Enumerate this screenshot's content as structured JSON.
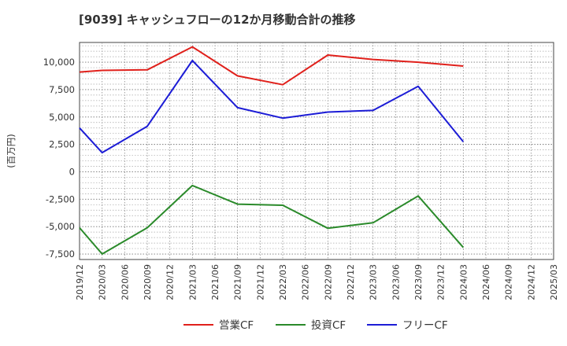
{
  "chart_data": {
    "type": "line",
    "title": "[9039]  キャッシュフローの12か月移動合計の推移",
    "ylabel": "(百万円)",
    "xlabel": "",
    "ylim": [
      -8000,
      11800
    ],
    "y_ticks": [
      10000,
      7500,
      5000,
      2500,
      0,
      -2500,
      -5000,
      -7500
    ],
    "y_tick_labels": [
      "10,000",
      "7,500",
      "5,000",
      "2,500",
      "0",
      "-2,500",
      "-5,000",
      "-7,500"
    ],
    "categories": [
      "2019/12",
      "2020/03",
      "2020/06",
      "2020/09",
      "2020/12",
      "2021/03",
      "2021/06",
      "2021/09",
      "2021/12",
      "2022/03",
      "2022/06",
      "2022/09",
      "2022/12",
      "2023/03",
      "2023/06",
      "2023/09",
      "2023/12",
      "2024/03",
      "2024/06",
      "2024/09",
      "2024/12",
      "2025/03"
    ],
    "series": [
      {
        "name": "営業CF",
        "color": "#e0201b",
        "values": [
          9100,
          9250,
          null,
          9300,
          null,
          11400,
          null,
          8750,
          null,
          7950,
          null,
          10650,
          null,
          10250,
          null,
          10000,
          null,
          9650,
          null,
          null,
          null,
          null
        ]
      },
      {
        "name": "投資CF",
        "color": "#2a8a2a",
        "values": [
          -5100,
          -7500,
          null,
          -5100,
          null,
          -1250,
          null,
          -2950,
          null,
          -3050,
          null,
          -5150,
          null,
          -4650,
          null,
          -2200,
          null,
          -6900,
          null,
          null,
          null,
          null
        ]
      },
      {
        "name": "フリーCF",
        "color": "#1c1cd6",
        "values": [
          4000,
          1750,
          null,
          4150,
          null,
          10150,
          null,
          5850,
          null,
          4900,
          null,
          5450,
          null,
          5600,
          null,
          7800,
          null,
          2750,
          null,
          null,
          null,
          null
        ]
      }
    ],
    "legend_position": "bottom",
    "grid": true
  }
}
